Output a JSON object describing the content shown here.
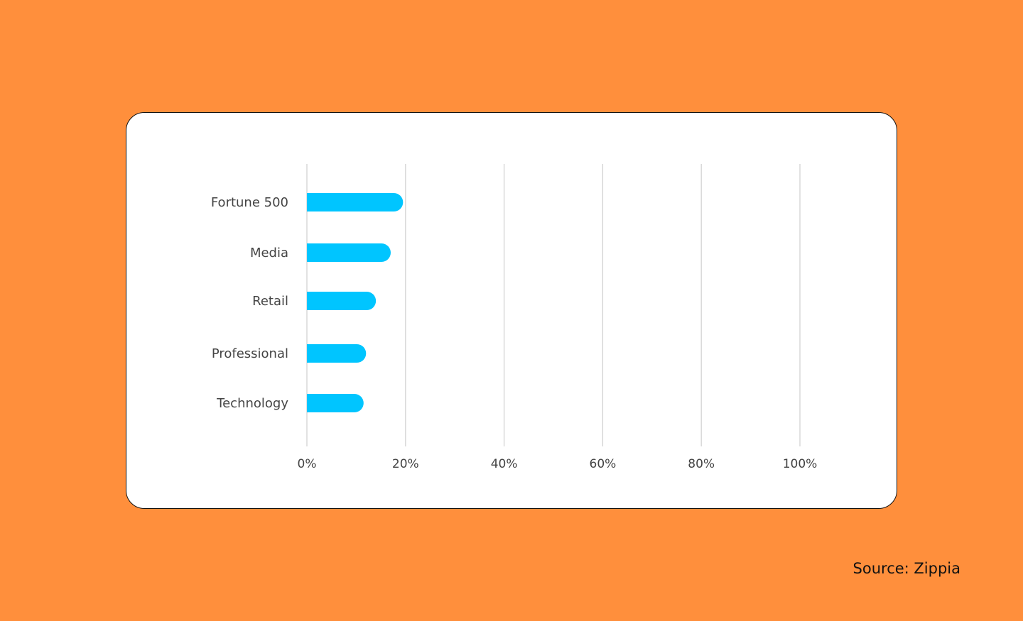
{
  "colors": {
    "background": "#FF8F3C",
    "card": "#FFFFFF",
    "bar": "#00C5FF",
    "gridline": "#D3D3D3",
    "text": "#444444",
    "source_text": "#111111"
  },
  "source": "Source: Zippia",
  "chart_data": {
    "type": "bar",
    "orientation": "horizontal",
    "categories": [
      "Fortune 500",
      "Media",
      "Retail",
      "Professional",
      "Technology"
    ],
    "values": [
      19.5,
      17,
      14,
      12,
      11.5
    ],
    "xlim": [
      0,
      100
    ],
    "xticks": [
      "0%",
      "20%",
      "40%",
      "60%",
      "80%",
      "100%"
    ],
    "grid": true,
    "legend": "none",
    "title": "",
    "xlabel": "",
    "ylabel": ""
  }
}
